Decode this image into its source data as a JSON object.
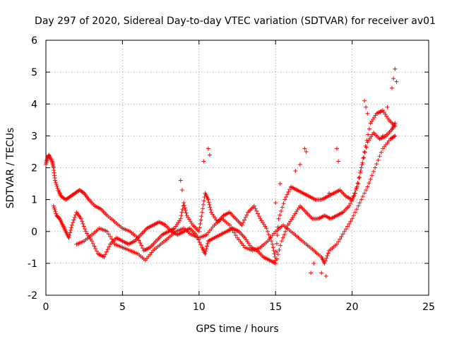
{
  "chart_data": {
    "type": "scatter",
    "title": "Day 297 of 2020, Sidereal Day-to-day VTEC variation (SDTVAR) for receiver av01",
    "xlabel": "GPS time / hours",
    "ylabel": "SDTVAR / TECUs",
    "xlim": [
      0,
      25
    ],
    "ylim": [
      -2,
      6
    ],
    "xticks": [
      "0",
      "5",
      "10",
      "15",
      "20",
      "25"
    ],
    "yticks": [
      "-2",
      "-1",
      "0",
      "1",
      "2",
      "3",
      "4",
      "5",
      "6"
    ],
    "grid": true,
    "marker": "+",
    "color": "#ff0000",
    "series": [
      {
        "name": "track-1",
        "points": [
          [
            0.0,
            2.1
          ],
          [
            0.1,
            2.3
          ],
          [
            0.2,
            2.4
          ],
          [
            0.4,
            2.2
          ],
          [
            0.5,
            2.0
          ],
          [
            0.6,
            1.6
          ],
          [
            0.8,
            1.3
          ],
          [
            1.0,
            1.1
          ],
          [
            1.3,
            1.0
          ],
          [
            1.6,
            1.1
          ],
          [
            1.9,
            1.2
          ],
          [
            2.2,
            1.3
          ],
          [
            2.5,
            1.2
          ],
          [
            2.8,
            1.0
          ],
          [
            3.2,
            0.8
          ],
          [
            3.6,
            0.7
          ],
          [
            4.0,
            0.5
          ],
          [
            4.5,
            0.3
          ],
          [
            5.0,
            0.1
          ],
          [
            5.5,
            0.0
          ],
          [
            6.0,
            -0.2
          ],
          [
            6.4,
            -0.6
          ],
          [
            6.8,
            -0.5
          ],
          [
            7.2,
            -0.3
          ],
          [
            7.6,
            -0.1
          ],
          [
            8.0,
            0.0
          ],
          [
            8.4,
            0.1
          ],
          [
            8.8,
            0.4
          ],
          [
            9.0,
            0.9
          ],
          [
            9.2,
            0.5
          ],
          [
            9.6,
            0.2
          ],
          [
            10.0,
            0.0
          ],
          [
            10.2,
            0.6
          ],
          [
            10.4,
            1.2
          ],
          [
            10.6,
            1.0
          ],
          [
            10.8,
            0.6
          ],
          [
            11.2,
            0.3
          ],
          [
            11.6,
            0.5
          ],
          [
            12.0,
            0.6
          ],
          [
            12.4,
            0.4
          ],
          [
            12.8,
            0.2
          ],
          [
            13.2,
            0.6
          ],
          [
            13.6,
            0.8
          ],
          [
            14.0,
            0.4
          ],
          [
            14.4,
            0.1
          ],
          [
            14.8,
            -0.4
          ],
          [
            15.0,
            -0.9
          ],
          [
            15.2,
            0.4
          ],
          [
            15.6,
            1.0
          ],
          [
            16.0,
            1.4
          ],
          [
            16.4,
            1.3
          ],
          [
            16.8,
            1.2
          ],
          [
            17.2,
            1.1
          ],
          [
            17.6,
            1.0
          ],
          [
            18.0,
            1.0
          ],
          [
            18.4,
            1.1
          ],
          [
            18.8,
            1.2
          ],
          [
            19.2,
            1.3
          ],
          [
            19.6,
            1.1
          ],
          [
            20.0,
            1.0
          ],
          [
            20.4,
            1.5
          ],
          [
            20.8,
            2.5
          ],
          [
            21.2,
            3.4
          ],
          [
            21.6,
            3.7
          ],
          [
            22.0,
            3.8
          ],
          [
            22.4,
            3.5
          ],
          [
            22.8,
            3.3
          ]
        ]
      },
      {
        "name": "track-2",
        "points": [
          [
            0.5,
            0.8
          ],
          [
            0.7,
            0.5
          ],
          [
            0.9,
            0.4
          ],
          [
            1.1,
            0.2
          ],
          [
            1.3,
            0.0
          ],
          [
            1.5,
            -0.2
          ],
          [
            1.7,
            0.2
          ],
          [
            2.0,
            0.6
          ],
          [
            2.3,
            0.4
          ],
          [
            2.6,
            0.0
          ],
          [
            3.0,
            -0.3
          ],
          [
            3.4,
            -0.7
          ],
          [
            3.8,
            -0.8
          ],
          [
            4.2,
            -0.4
          ],
          [
            4.6,
            -0.2
          ],
          [
            5.0,
            -0.3
          ],
          [
            5.4,
            -0.4
          ],
          [
            5.8,
            -0.3
          ],
          [
            6.2,
            -0.1
          ],
          [
            6.6,
            0.1
          ],
          [
            7.0,
            0.2
          ],
          [
            7.4,
            0.3
          ],
          [
            7.8,
            0.2
          ],
          [
            8.2,
            0.0
          ],
          [
            8.6,
            -0.1
          ],
          [
            9.0,
            0.0
          ],
          [
            9.4,
            0.1
          ],
          [
            9.8,
            -0.1
          ],
          [
            10.2,
            -0.5
          ],
          [
            10.4,
            -0.7
          ],
          [
            10.6,
            -0.3
          ],
          [
            11.0,
            -0.2
          ],
          [
            11.4,
            -0.1
          ],
          [
            11.8,
            0.0
          ],
          [
            12.2,
            0.1
          ],
          [
            12.6,
            0.0
          ],
          [
            13.0,
            -0.2
          ],
          [
            13.4,
            -0.5
          ],
          [
            13.8,
            -0.6
          ],
          [
            14.2,
            -0.8
          ],
          [
            14.6,
            -0.9
          ],
          [
            15.0,
            -1.0
          ],
          [
            15.4,
            -0.3
          ],
          [
            15.8,
            0.2
          ],
          [
            16.2,
            0.5
          ],
          [
            16.6,
            0.8
          ],
          [
            17.0,
            0.6
          ],
          [
            17.4,
            0.4
          ],
          [
            17.8,
            0.4
          ],
          [
            18.2,
            0.5
          ],
          [
            18.6,
            0.4
          ],
          [
            19.0,
            0.5
          ],
          [
            19.4,
            0.6
          ],
          [
            19.8,
            0.8
          ],
          [
            20.2,
            1.2
          ],
          [
            20.6,
            2.0
          ],
          [
            21.0,
            2.8
          ],
          [
            21.4,
            3.1
          ],
          [
            21.8,
            2.9
          ],
          [
            22.2,
            3.0
          ],
          [
            22.6,
            3.2
          ],
          [
            22.8,
            3.4
          ]
        ]
      },
      {
        "name": "track-3",
        "points": [
          [
            2.0,
            -0.4
          ],
          [
            2.5,
            -0.3
          ],
          [
            3.0,
            -0.1
          ],
          [
            3.5,
            0.1
          ],
          [
            4.0,
            0.0
          ],
          [
            4.5,
            -0.4
          ],
          [
            5.0,
            -0.5
          ],
          [
            5.5,
            -0.6
          ],
          [
            6.0,
            -0.7
          ],
          [
            6.5,
            -0.9
          ],
          [
            7.0,
            -0.6
          ],
          [
            7.5,
            -0.4
          ],
          [
            8.0,
            -0.2
          ],
          [
            8.5,
            0.0
          ],
          [
            9.0,
            0.1
          ],
          [
            9.5,
            -0.1
          ],
          [
            10.0,
            -0.2
          ],
          [
            10.5,
            -0.1
          ],
          [
            11.0,
            0.2
          ],
          [
            11.5,
            0.4
          ],
          [
            12.0,
            0.2
          ],
          [
            12.5,
            -0.2
          ],
          [
            13.0,
            -0.5
          ],
          [
            13.5,
            -0.6
          ],
          [
            14.0,
            -0.5
          ],
          [
            14.5,
            -0.3
          ],
          [
            15.0,
            0.0
          ],
          [
            15.5,
            0.2
          ],
          [
            16.0,
            0.0
          ],
          [
            16.5,
            -0.2
          ],
          [
            17.0,
            -0.4
          ],
          [
            17.5,
            -0.6
          ],
          [
            18.0,
            -0.8
          ],
          [
            18.2,
            -1.0
          ],
          [
            18.5,
            -0.6
          ],
          [
            19.0,
            -0.4
          ],
          [
            19.5,
            0.0
          ],
          [
            20.0,
            0.4
          ],
          [
            20.5,
            0.9
          ],
          [
            21.0,
            1.4
          ],
          [
            21.5,
            2.0
          ],
          [
            22.0,
            2.6
          ],
          [
            22.5,
            2.9
          ],
          [
            22.8,
            3.0
          ]
        ]
      },
      {
        "name": "spikes",
        "points": [
          [
            8.8,
            1.6
          ],
          [
            8.9,
            1.3
          ],
          [
            10.3,
            2.2
          ],
          [
            10.6,
            2.6
          ],
          [
            10.7,
            2.4
          ],
          [
            15.0,
            0.9
          ],
          [
            15.3,
            1.5
          ],
          [
            16.3,
            1.9
          ],
          [
            16.6,
            2.1
          ],
          [
            16.9,
            2.6
          ],
          [
            17.0,
            2.5
          ],
          [
            17.3,
            -1.3
          ],
          [
            17.5,
            -1.0
          ],
          [
            18.0,
            -1.3
          ],
          [
            18.3,
            -1.4
          ],
          [
            18.5,
            1.2
          ],
          [
            19.0,
            2.6
          ],
          [
            19.1,
            2.2
          ],
          [
            20.8,
            4.1
          ],
          [
            20.9,
            3.9
          ],
          [
            21.0,
            3.7
          ],
          [
            22.0,
            3.0
          ],
          [
            22.3,
            3.9
          ],
          [
            22.6,
            4.5
          ],
          [
            22.7,
            4.8
          ],
          [
            22.8,
            5.1
          ],
          [
            22.9,
            4.7
          ]
        ]
      }
    ]
  }
}
